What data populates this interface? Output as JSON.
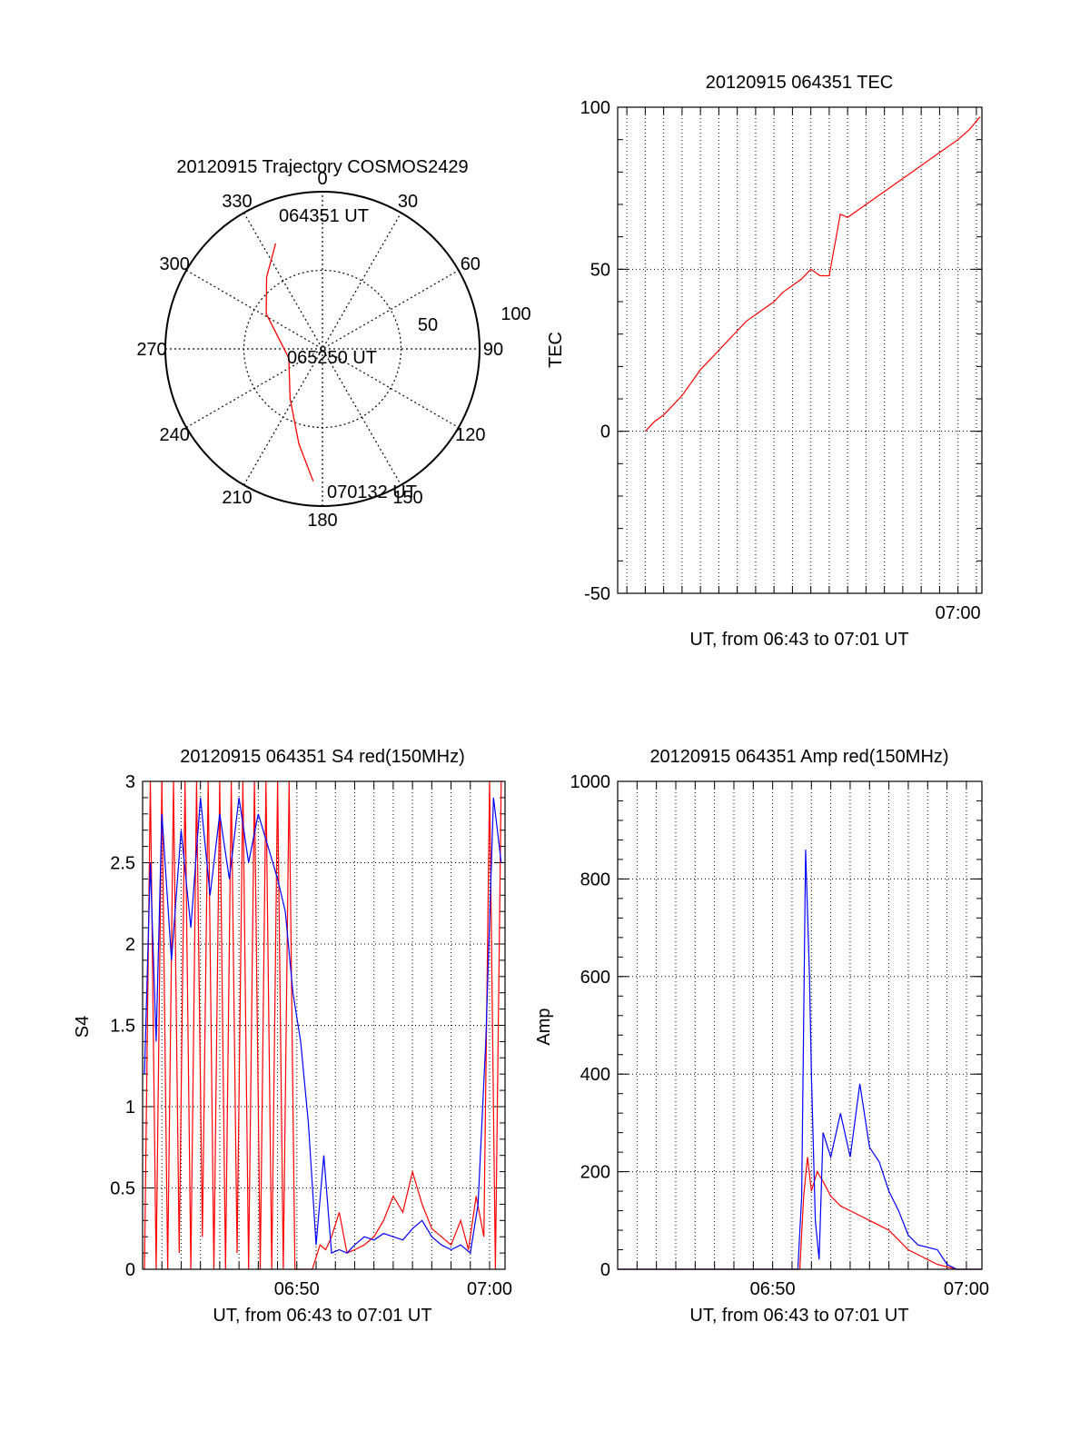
{
  "chart_data": [
    {
      "type": "polar",
      "title": "20120915 Trajectory COSMOS2429",
      "azimuth_labels": [
        "0",
        "30",
        "60",
        "90",
        "120",
        "150",
        "180",
        "210",
        "240",
        "270",
        "300",
        "330"
      ],
      "radial_labels": [
        "50",
        "100"
      ],
      "radial_range": [
        0,
        90
      ],
      "grid": true,
      "track": {
        "color": "#ff0000",
        "points": [
          {
            "azimuth": 336,
            "elevation": 24
          },
          {
            "azimuth": 322,
            "elevation": 38
          },
          {
            "azimuth": 302,
            "elevation": 52
          },
          {
            "azimuth": 255,
            "elevation": 70
          },
          {
            "azimuth": 213,
            "elevation": 56
          },
          {
            "azimuth": 194,
            "elevation": 34
          },
          {
            "azimuth": 184,
            "elevation": 14
          }
        ]
      },
      "annotations": [
        "064351 UT",
        "065250 UT",
        "070132 UT"
      ]
    },
    {
      "type": "line",
      "title": "20120915 064351 TEC",
      "xlabel": "UT, from 06:43 to 07:01 UT",
      "ylabel": "TEC",
      "xlim": [
        -1.5,
        18.3
      ],
      "ylim": [
        -50,
        100
      ],
      "yticks": [
        "-50",
        "0",
        "50",
        "100"
      ],
      "xticks": [
        {
          "x": 17,
          "label": "07:00"
        }
      ],
      "grid": true,
      "series": [
        {
          "color": "#ff0000",
          "x": [
            0,
            0.5,
            1,
            1.5,
            2,
            2.5,
            3,
            3.5,
            4,
            4.5,
            5,
            5.5,
            6,
            6.5,
            7,
            7.5,
            8,
            8.5,
            9,
            9.5,
            10,
            10.6,
            11,
            12,
            13,
            14,
            15,
            16,
            17,
            17.6,
            18.2
          ],
          "y": [
            0,
            3,
            5,
            8,
            11,
            15,
            19,
            22,
            25,
            28,
            31,
            34,
            36,
            38,
            40,
            43,
            45,
            47,
            50,
            48,
            48,
            67,
            66,
            70,
            74,
            78,
            82,
            86,
            90,
            93,
            97
          ]
        }
      ]
    },
    {
      "type": "line",
      "title": "20120915 064351 S4 red(150MHz)",
      "xlabel": "UT, from 06:43 to 07:01 UT",
      "ylabel": "S4",
      "xlim": [
        -1.0,
        17.8
      ],
      "ylim": [
        0,
        3
      ],
      "yticks": [
        "0",
        "0.5",
        "1",
        "1.5",
        "2",
        "2.5",
        "3"
      ],
      "xticks": [
        {
          "x": 7,
          "label": "06:50"
        },
        {
          "x": 17,
          "label": "07:00"
        }
      ],
      "grid": true,
      "series": [
        {
          "color": "#ff0000",
          "x": [
            -0.9,
            -0.6,
            -0.3,
            0.0,
            0.3,
            0.6,
            0.9,
            1.2,
            1.5,
            1.8,
            2.1,
            2.4,
            2.7,
            3.0,
            3.3,
            3.6,
            3.9,
            4.2,
            4.5,
            4.8,
            5.1,
            5.4,
            5.7,
            6.0,
            6.3,
            6.6,
            6.9,
            7.2,
            7.5,
            7.8,
            8.2,
            8.5,
            8.8,
            9.2,
            9.6,
            10.0,
            10.5,
            11.0,
            11.5,
            12.0,
            12.5,
            13.0,
            13.5,
            14.0,
            14.5,
            15.0,
            15.5,
            15.9,
            16.3,
            16.7,
            17.0,
            17.3,
            17.6
          ],
          "y": [
            0.0,
            3.0,
            0.0,
            3.0,
            0.0,
            3.0,
            0.1,
            3.0,
            0.0,
            3.0,
            0.2,
            3.0,
            0.0,
            3.0,
            0.0,
            3.0,
            0.1,
            3.0,
            0.0,
            3.0,
            0.0,
            3.0,
            0.0,
            3.0,
            0.0,
            3.0,
            0.0,
            0.0,
            0.0,
            0.0,
            0.15,
            0.12,
            0.2,
            0.35,
            0.1,
            0.12,
            0.15,
            0.2,
            0.3,
            0.45,
            0.35,
            0.6,
            0.4,
            0.25,
            0.2,
            0.15,
            0.3,
            0.12,
            0.45,
            0.2,
            3.0,
            0.0,
            3.0
          ]
        },
        {
          "color": "#0000ff",
          "x": [
            -0.9,
            -0.6,
            -0.3,
            0.0,
            0.5,
            1.0,
            1.5,
            2.0,
            2.5,
            3.0,
            3.5,
            4.0,
            4.5,
            5.0,
            5.5,
            6.0,
            6.4,
            6.8,
            7.2,
            7.6,
            8.0,
            8.4,
            8.8,
            9.2,
            9.6,
            10.0,
            10.5,
            11.0,
            11.5,
            12.0,
            12.5,
            13.0,
            13.5,
            14.0,
            14.5,
            15.0,
            15.5,
            16.0,
            16.4,
            16.8,
            17.2,
            17.6
          ],
          "y": [
            1.2,
            2.5,
            1.4,
            2.8,
            1.9,
            2.7,
            2.1,
            2.9,
            2.3,
            2.8,
            2.4,
            2.9,
            2.5,
            2.8,
            2.6,
            2.4,
            2.2,
            1.7,
            1.4,
            0.9,
            0.15,
            0.7,
            0.1,
            0.12,
            0.1,
            0.15,
            0.2,
            0.18,
            0.22,
            0.2,
            0.18,
            0.25,
            0.3,
            0.2,
            0.15,
            0.12,
            0.15,
            0.1,
            0.4,
            1.4,
            2.9,
            2.5
          ]
        }
      ]
    },
    {
      "type": "line",
      "title": "20120915 064351 Amp red(150MHz)",
      "xlabel": "UT, from 06:43 to 07:01 UT",
      "ylabel": "Amp",
      "xlim": [
        -1.0,
        17.8
      ],
      "ylim": [
        0,
        1000
      ],
      "yticks": [
        "0",
        "200",
        "400",
        "600",
        "800",
        "1000"
      ],
      "xticks": [
        {
          "x": 7,
          "label": "06:50"
        },
        {
          "x": 17,
          "label": "07:00"
        }
      ],
      "grid": true,
      "series": [
        {
          "color": "#ff0000",
          "x": [
            -1.0,
            8.0,
            8.4,
            8.6,
            8.8,
            9.0,
            9.3,
            9.6,
            10.0,
            10.5,
            11.0,
            11.5,
            12.0,
            12.5,
            13.0,
            13.5,
            14.0,
            14.5,
            15.0,
            15.5,
            16.0,
            16.5,
            17.0,
            17.8
          ],
          "y": [
            0,
            0,
            0,
            150,
            230,
            160,
            200,
            180,
            150,
            130,
            120,
            110,
            100,
            90,
            80,
            60,
            40,
            30,
            20,
            10,
            5,
            0,
            0,
            0
          ]
        },
        {
          "color": "#0000ff",
          "x": [
            -1.0,
            8.0,
            8.3,
            8.5,
            8.7,
            8.9,
            9.0,
            9.2,
            9.4,
            9.6,
            10.0,
            10.5,
            11.0,
            11.5,
            12.0,
            12.5,
            13.0,
            13.5,
            14.0,
            14.5,
            15.0,
            15.5,
            16.0,
            16.5,
            17.0,
            17.8
          ],
          "y": [
            0,
            0,
            0,
            150,
            860,
            600,
            400,
            100,
            20,
            280,
            230,
            320,
            230,
            380,
            250,
            220,
            160,
            120,
            70,
            50,
            45,
            40,
            10,
            0,
            0,
            0
          ]
        }
      ]
    }
  ]
}
